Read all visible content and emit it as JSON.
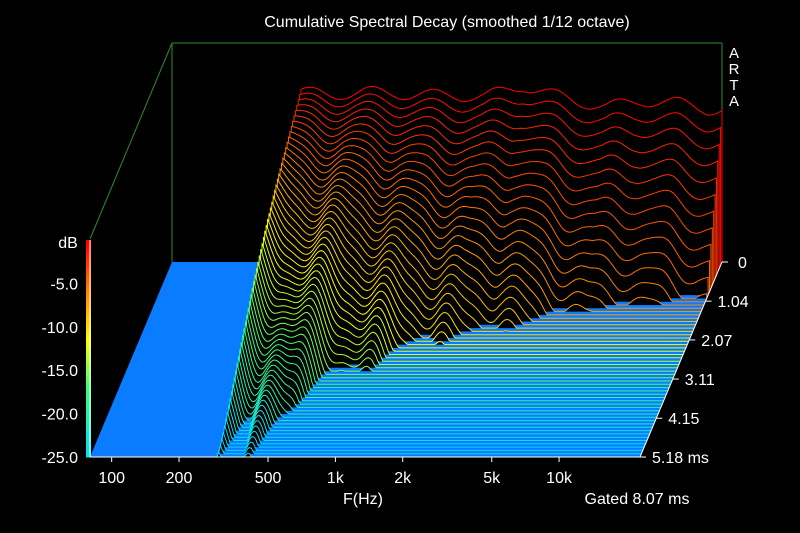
{
  "chart_data": {
    "type": "waterfall-3d",
    "title": "Cumulative Spectral Decay (smoothed 1/12 octave)",
    "brand": "ARTA",
    "xlabel": "F(Hz)",
    "x_scale": "log",
    "xlim": [
      80,
      23000
    ],
    "x_ticks": [
      "100",
      "200",
      "500",
      "1k",
      "2k",
      "5k",
      "10k"
    ],
    "x_tick_values": [
      100,
      200,
      500,
      1000,
      2000,
      5000,
      10000
    ],
    "zlabel": "dB",
    "zlim": [
      -25,
      0
    ],
    "z_ticks": [
      "-5.0",
      "-10.0",
      "-15.0",
      "-20.0",
      "-25.0"
    ],
    "z_tick_values": [
      -5,
      -10,
      -15,
      -20,
      -25
    ],
    "time_unit": "ms",
    "time_ticks": [
      "0",
      "1.04",
      "2.07",
      "3.11",
      "4.15",
      "5.18 ms"
    ],
    "time_tick_values": [
      0,
      1.04,
      2.07,
      3.11,
      4.15,
      5.18
    ],
    "gate_label": "Gated 8.07 ms",
    "colorbar": [
      "#ff0000",
      "#ff8800",
      "#ffff00",
      "#00ffff"
    ],
    "floor_color": "#0a7cff",
    "frame_color": "#2e8b2e",
    "response_db_at_t0": [
      [
        300,
        -5.5
      ],
      [
        400,
        -5.8
      ],
      [
        600,
        -5.5
      ],
      [
        1000,
        -5.8
      ],
      [
        2000,
        -6.0
      ],
      [
        3000,
        -4.8
      ],
      [
        5000,
        -6.5
      ],
      [
        7000,
        -7.2
      ],
      [
        10000,
        -6.5
      ],
      [
        15000,
        -6.8
      ],
      [
        20000,
        -7.5
      ]
    ],
    "slices_shown": 60
  }
}
